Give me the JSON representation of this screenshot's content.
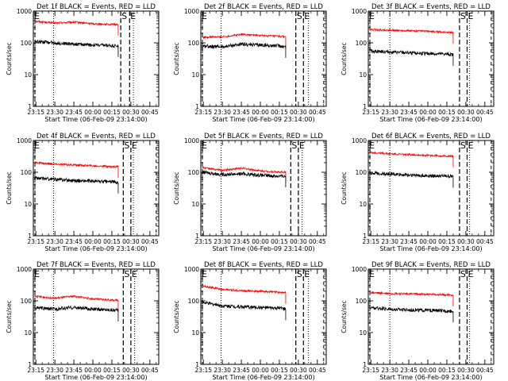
{
  "chart_data": {
    "type": "line",
    "colors": {
      "events": "#000000",
      "lld": "#ff0000",
      "axes": "#000000",
      "background": "#ffffff"
    },
    "y_scale": "log",
    "ylim": [
      1,
      1000
    ],
    "y_ticks": [
      {
        "value": 1,
        "label": "1"
      },
      {
        "value": 10,
        "label": "10"
      },
      {
        "value": 100,
        "label": "100"
      },
      {
        "value": 1000,
        "label": "1000"
      }
    ],
    "xlim": [
      "23:13",
      "00:52"
    ],
    "x_ticks": [
      "23:15",
      "23:30",
      "23:45",
      "00:00",
      "00:15",
      "00:30",
      "00:45"
    ],
    "xlabel": "Start Time (06-Feb-09 23:14:00)",
    "ylabel": "Counts/sec",
    "data_start": "23:14",
    "data_end": "00:20",
    "panels": [
      {
        "title": "Det 1f BLACK = Events, RED = LLD",
        "events": [
          {
            "t": "23:14",
            "y": 110
          },
          {
            "t": "23:30",
            "y": 100
          },
          {
            "t": "23:45",
            "y": 92
          },
          {
            "t": "00:00",
            "y": 86
          },
          {
            "t": "00:15",
            "y": 82
          },
          {
            "t": "00:20",
            "y": 80
          }
        ],
        "lld": [
          {
            "t": "23:14",
            "y": 480
          },
          {
            "t": "23:30",
            "y": 420
          },
          {
            "t": "23:45",
            "y": 450
          },
          {
            "t": "00:00",
            "y": 400
          },
          {
            "t": "00:15",
            "y": 380
          },
          {
            "t": "00:20",
            "y": 380
          }
        ],
        "markers": {
          "S": "00:22",
          "E": "00:29",
          "dotted": [
            "23:29",
            "00:32"
          ],
          "dashed_right": "00:52"
        }
      },
      {
        "title": "Det 2f BLACK = Events, RED = LLD",
        "events": [
          {
            "t": "23:14",
            "y": 80
          },
          {
            "t": "23:30",
            "y": 75
          },
          {
            "t": "23:45",
            "y": 90
          },
          {
            "t": "00:00",
            "y": 85
          },
          {
            "t": "00:15",
            "y": 80
          },
          {
            "t": "00:20",
            "y": 75
          }
        ],
        "lld": [
          {
            "t": "23:14",
            "y": 150
          },
          {
            "t": "23:30",
            "y": 155
          },
          {
            "t": "23:45",
            "y": 185
          },
          {
            "t": "00:00",
            "y": 170
          },
          {
            "t": "00:15",
            "y": 160
          },
          {
            "t": "00:20",
            "y": 155
          }
        ],
        "markers": {
          "S": "00:28",
          "E": "00:34",
          "dotted": [
            "23:29",
            "00:38"
          ],
          "dashed_right": "00:50"
        }
      },
      {
        "title": "Det 3f BLACK = Events, RED = LLD",
        "events": [
          {
            "t": "23:14",
            "y": 55
          },
          {
            "t": "23:30",
            "y": 52
          },
          {
            "t": "23:45",
            "y": 48
          },
          {
            "t": "00:00",
            "y": 46
          },
          {
            "t": "00:15",
            "y": 44
          },
          {
            "t": "00:20",
            "y": 42
          }
        ],
        "lld": [
          {
            "t": "23:14",
            "y": 260
          },
          {
            "t": "23:30",
            "y": 250
          },
          {
            "t": "23:45",
            "y": 240
          },
          {
            "t": "00:00",
            "y": 230
          },
          {
            "t": "00:15",
            "y": 215
          },
          {
            "t": "00:20",
            "y": 210
          }
        ],
        "markers": {
          "S": "00:25",
          "E": "00:31",
          "dotted": [
            "23:30",
            "00:33"
          ],
          "dashed_right": "00:50"
        }
      },
      {
        "title": "Det 4f BLACK = Events, RED = LLD",
        "events": [
          {
            "t": "23:14",
            "y": 65
          },
          {
            "t": "23:30",
            "y": 60
          },
          {
            "t": "23:45",
            "y": 55
          },
          {
            "t": "00:00",
            "y": 52
          },
          {
            "t": "00:15",
            "y": 50
          },
          {
            "t": "00:20",
            "y": 48
          }
        ],
        "lld": [
          {
            "t": "23:14",
            "y": 200
          },
          {
            "t": "23:30",
            "y": 180
          },
          {
            "t": "23:45",
            "y": 170
          },
          {
            "t": "00:00",
            "y": 160
          },
          {
            "t": "00:15",
            "y": 150
          },
          {
            "t": "00:20",
            "y": 150
          }
        ],
        "markers": {
          "S": "00:24",
          "E": "00:30",
          "dotted": [
            "23:29",
            "00:32"
          ],
          "dashed_right": "00:50"
        }
      },
      {
        "title": "Det 5f BLACK = Events, RED = LLD",
        "events": [
          {
            "t": "23:14",
            "y": 100
          },
          {
            "t": "23:30",
            "y": 85
          },
          {
            "t": "23:45",
            "y": 90
          },
          {
            "t": "00:00",
            "y": 80
          },
          {
            "t": "00:15",
            "y": 75
          },
          {
            "t": "00:20",
            "y": 75
          }
        ],
        "lld": [
          {
            "t": "23:14",
            "y": 140
          },
          {
            "t": "23:30",
            "y": 115
          },
          {
            "t": "23:45",
            "y": 135
          },
          {
            "t": "00:00",
            "y": 110
          },
          {
            "t": "00:15",
            "y": 100
          },
          {
            "t": "00:20",
            "y": 100
          }
        ],
        "markers": {
          "S": "00:24",
          "E": "00:30",
          "dotted": [
            "23:29",
            "00:33"
          ],
          "dashed_right": "00:52"
        }
      },
      {
        "title": "Det 6f BLACK = Events, RED = LLD",
        "events": [
          {
            "t": "23:14",
            "y": 95
          },
          {
            "t": "23:30",
            "y": 88
          },
          {
            "t": "23:45",
            "y": 82
          },
          {
            "t": "00:00",
            "y": 78
          },
          {
            "t": "00:15",
            "y": 75
          },
          {
            "t": "00:20",
            "y": 73
          }
        ],
        "lld": [
          {
            "t": "23:14",
            "y": 420
          },
          {
            "t": "23:30",
            "y": 380
          },
          {
            "t": "23:45",
            "y": 360
          },
          {
            "t": "00:00",
            "y": 340
          },
          {
            "t": "00:15",
            "y": 320
          },
          {
            "t": "00:20",
            "y": 320
          }
        ],
        "markers": {
          "S": "00:25",
          "E": "00:31",
          "dotted": [
            "23:30",
            "00:33"
          ],
          "dashed_right": "00:50"
        }
      },
      {
        "title": "Det 7f BLACK = Events, RED = LLD",
        "events": [
          {
            "t": "23:14",
            "y": 60
          },
          {
            "t": "23:30",
            "y": 55
          },
          {
            "t": "23:45",
            "y": 62
          },
          {
            "t": "00:00",
            "y": 55
          },
          {
            "t": "00:15",
            "y": 52
          },
          {
            "t": "00:20",
            "y": 50
          }
        ],
        "lld": [
          {
            "t": "23:14",
            "y": 140
          },
          {
            "t": "23:30",
            "y": 120
          },
          {
            "t": "23:45",
            "y": 140
          },
          {
            "t": "00:00",
            "y": 115
          },
          {
            "t": "00:15",
            "y": 105
          },
          {
            "t": "00:20",
            "y": 105
          }
        ],
        "markers": {
          "S": "00:24",
          "E": "00:30",
          "dotted": [
            "23:29",
            "00:33"
          ],
          "dashed_right": "00:52"
        }
      },
      {
        "title": "Det 8f BLACK = Events, RED = LLD",
        "events": [
          {
            "t": "23:14",
            "y": 90
          },
          {
            "t": "23:30",
            "y": 70
          },
          {
            "t": "23:45",
            "y": 65
          },
          {
            "t": "00:00",
            "y": 62
          },
          {
            "t": "00:15",
            "y": 58
          },
          {
            "t": "00:20",
            "y": 55
          }
        ],
        "lld": [
          {
            "t": "23:14",
            "y": 300
          },
          {
            "t": "23:30",
            "y": 230
          },
          {
            "t": "23:45",
            "y": 210
          },
          {
            "t": "00:00",
            "y": 200
          },
          {
            "t": "00:15",
            "y": 185
          },
          {
            "t": "00:20",
            "y": 180
          }
        ],
        "markers": {
          "S": "00:28",
          "E": "00:34",
          "dotted": [
            "23:29",
            "00:38"
          ],
          "dashed_right": "00:50"
        }
      },
      {
        "title": "Det 9f BLACK = Events, RED = LLD",
        "events": [
          {
            "t": "23:14",
            "y": 60
          },
          {
            "t": "23:30",
            "y": 55
          },
          {
            "t": "23:45",
            "y": 52
          },
          {
            "t": "00:00",
            "y": 50
          },
          {
            "t": "00:15",
            "y": 48
          },
          {
            "t": "00:20",
            "y": 47
          }
        ],
        "lld": [
          {
            "t": "23:14",
            "y": 180
          },
          {
            "t": "23:30",
            "y": 170
          },
          {
            "t": "23:45",
            "y": 165
          },
          {
            "t": "00:00",
            "y": 160
          },
          {
            "t": "00:15",
            "y": 155
          },
          {
            "t": "00:20",
            "y": 150
          }
        ],
        "markers": {
          "S": "00:25",
          "E": "00:31",
          "dotted": [
            "23:30",
            "00:33"
          ],
          "dashed_right": "00:50"
        }
      }
    ]
  }
}
